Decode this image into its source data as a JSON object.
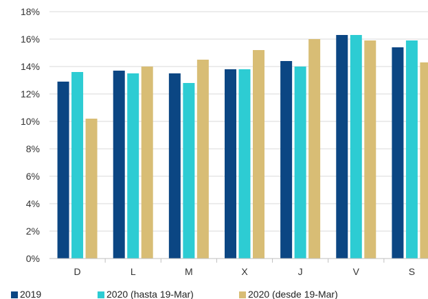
{
  "chart_data": {
    "type": "bar",
    "categories": [
      "D",
      "L",
      "M",
      "X",
      "J",
      "V",
      "S"
    ],
    "series": [
      {
        "name": "2019",
        "color": "#0b4683",
        "values": [
          12.9,
          13.7,
          13.5,
          13.8,
          14.4,
          16.3,
          15.4
        ]
      },
      {
        "name": "2020 (hasta 19-Mar)",
        "color": "#2dccd3",
        "values": [
          13.6,
          13.5,
          12.8,
          13.8,
          14.0,
          16.3,
          15.9
        ]
      },
      {
        "name": "2020 (desde 19-Mar)",
        "color": "#d8bd75",
        "values": [
          10.2,
          14.0,
          14.5,
          15.2,
          16.0,
          15.9,
          14.3
        ]
      }
    ],
    "yticks": [
      "0%",
      "2%",
      "4%",
      "6%",
      "8%",
      "10%",
      "12%",
      "14%",
      "16%",
      "18%"
    ],
    "ylim": [
      0,
      18
    ],
    "ylabel": "",
    "xlabel": "",
    "grid": true,
    "legend_position": "bottom"
  }
}
